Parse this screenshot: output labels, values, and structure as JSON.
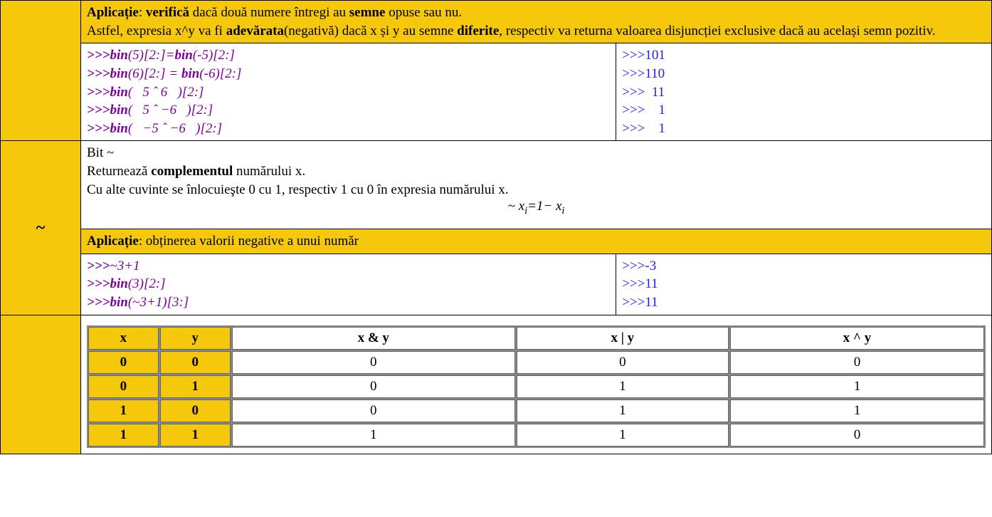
{
  "row_xor": {
    "app_label": "Aplicație",
    "app_text1a": ": ",
    "app_b1": "verifică",
    "app_text1b": " dacă două numere întregi au ",
    "app_b2": "semne",
    "app_text1c": " opuse sau nu.",
    "app_text2a": "Astfel, expresia x^y va fi ",
    "app_b3": "adevărata",
    "app_text2b": "(negativă) dacă x și y au semne ",
    "app_b4": "diferite",
    "app_text2c": ", respectiv va returna valoarea disjuncției exclusive dacă au același semn pozitiv.",
    "code_left": [
      {
        "p": ">>>",
        "kw": "bin",
        "rest": "(5)[2:]=",
        "kw2": "bin",
        "rest2": "(-5)[2:]"
      },
      {
        "p": ">>>",
        "kw": "bin",
        "rest": "(6)[2:] = ",
        "kw2": "bin",
        "rest2": "(-6)[2:]"
      },
      {
        "p": ">>>",
        "kw": "bin",
        "rest": "(   5 ˆ 6   )[2:]",
        "kw2": "",
        "rest2": ""
      },
      {
        "p": ">>>",
        "kw": "bin",
        "rest": "(   5 ˆ −6   )[2:]",
        "kw2": "",
        "rest2": ""
      },
      {
        "p": ">>>",
        "kw": "bin",
        "rest": "(   −5 ˆ −6   )[2:]",
        "kw2": "",
        "rest2": ""
      }
    ],
    "code_right": [
      ">>>101",
      ">>>110",
      ">>>  11",
      ">>>    1",
      ">>>    1"
    ]
  },
  "row_not": {
    "op": "~",
    "desc_l1": "Bit ~",
    "desc_l2a": "Returnează ",
    "desc_l2b": "complementul",
    "desc_l2c": " numărului x.",
    "desc_l3": "Cu alte cuvinte se înlocuieşte 0 cu 1, respectiv 1 cu 0 în expresia numărului x.",
    "formula_prefix": "~ x",
    "formula_sub1": "i",
    "formula_mid": "=1− x",
    "formula_sub2": "i",
    "app_label": "Aplicație",
    "app_text": ": obținerea valorii negative a unui număr",
    "code_left": [
      {
        "p": ">>>",
        "kw": "",
        "rest": "~3+1",
        "kw2": "",
        "rest2": ""
      },
      {
        "p": ">>>",
        "kw": "bin",
        "rest": "(3)[2:]",
        "kw2": "",
        "rest2": ""
      },
      {
        "p": ">>>",
        "kw": "bin",
        "rest": "(~3+1)[3:]",
        "kw2": "",
        "rest2": ""
      }
    ],
    "code_right": [
      ">>>-3",
      ">>>11",
      ">>>11"
    ]
  },
  "truth": {
    "headers": [
      "x",
      "y",
      "x & y",
      "x | y",
      "x ^ y"
    ],
    "rows": [
      [
        "0",
        "0",
        "0",
        "0",
        "0"
      ],
      [
        "0",
        "1",
        "0",
        "1",
        "1"
      ],
      [
        "1",
        "0",
        "0",
        "1",
        "1"
      ],
      [
        "1",
        "1",
        "1",
        "1",
        "0"
      ]
    ]
  },
  "colors": {
    "gold": "#f6c80c",
    "white": "#ffffff",
    "code_left": "#7b0099",
    "code_right": "#1a1aff",
    "border": "#000000"
  }
}
